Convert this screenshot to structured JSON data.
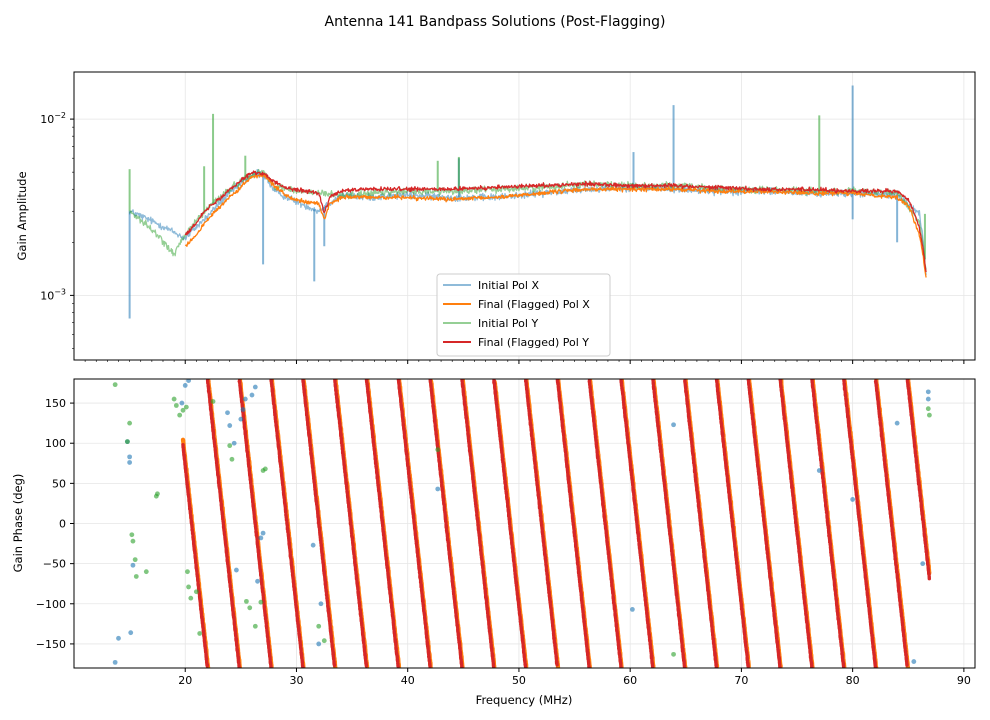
{
  "figure": {
    "title": "Antenna 141 Bandpass Solutions (Post-Flagging)"
  },
  "chart_data": [
    {
      "type": "line",
      "panel": "top",
      "title": "",
      "xlabel": "",
      "ylabel": "Gain Amplitude",
      "yscale": "log",
      "xlim": [
        10,
        91
      ],
      "ylim": [
        0.00043,
        0.0185
      ],
      "y_ticks": [
        {
          "value": 0.001,
          "base": "10",
          "exp": "−3"
        },
        {
          "value": 0.01,
          "base": "10",
          "exp": "−2"
        }
      ],
      "grid": true,
      "legend_position": "lower-center",
      "series": [
        {
          "name": "Initial Pol X",
          "color": "#1f77b4",
          "alpha": 0.5,
          "x": [
            15,
            20,
            22,
            24,
            26,
            27,
            28,
            30,
            32,
            34,
            36,
            40,
            44,
            48,
            52,
            56,
            60,
            64,
            68,
            72,
            76,
            80,
            84,
            86,
            86.6
          ],
          "y": [
            0.003,
            0.0021,
            0.0028,
            0.0038,
            0.0048,
            0.0049,
            0.0039,
            0.0034,
            0.003,
            0.0037,
            0.0036,
            0.0037,
            0.0036,
            0.0036,
            0.0038,
            0.004,
            0.0041,
            0.004,
            0.0039,
            0.0039,
            0.0038,
            0.0038,
            0.0037,
            0.0029,
            0.0013
          ],
          "spikes": [
            [
              15,
              0.00074
            ],
            [
              26.5,
              0.0052
            ],
            [
              27,
              0.0015
            ],
            [
              31.6,
              0.0012
            ],
            [
              32.5,
              0.0019
            ],
            [
              44.6,
              0.006
            ],
            [
              60.3,
              0.0065
            ],
            [
              63.9,
              0.012
            ],
            [
              80,
              0.0155
            ],
            [
              80,
              0.0027
            ],
            [
              84,
              0.002
            ]
          ]
        },
        {
          "name": "Final (Flagged) Pol X",
          "color": "#ff7f0e",
          "alpha": 1,
          "x": [
            20,
            21,
            22,
            23,
            24,
            25,
            26,
            27,
            28,
            29,
            30,
            31,
            32,
            32.5,
            33,
            34,
            36,
            40,
            44,
            48,
            52,
            56,
            60,
            64,
            68,
            72,
            76,
            80,
            84,
            85,
            86,
            86.6
          ],
          "y": [
            0.0019,
            0.0022,
            0.0027,
            0.0031,
            0.0036,
            0.0041,
            0.0047,
            0.0048,
            0.0042,
            0.0037,
            0.0035,
            0.0034,
            0.0033,
            0.0027,
            0.0033,
            0.0036,
            0.0036,
            0.0036,
            0.0035,
            0.0036,
            0.0038,
            0.004,
            0.004,
            0.004,
            0.0039,
            0.0039,
            0.0038,
            0.0038,
            0.0036,
            0.0032,
            0.0022,
            0.00125
          ]
        },
        {
          "name": "Initial Pol Y",
          "color": "#2ca02c",
          "alpha": 0.5,
          "x": [
            15,
            19,
            20,
            22,
            24,
            26,
            27,
            28,
            30,
            34,
            40,
            44,
            48,
            52,
            56,
            60,
            64,
            68,
            72,
            76,
            80,
            84,
            86,
            86.6
          ],
          "y": [
            0.003,
            0.0017,
            0.0022,
            0.0031,
            0.004,
            0.0049,
            0.005,
            0.0042,
            0.0039,
            0.0037,
            0.0039,
            0.0039,
            0.004,
            0.0041,
            0.0043,
            0.0042,
            0.0042,
            0.004,
            0.004,
            0.0039,
            0.0039,
            0.0038,
            0.0026,
            0.0014
          ],
          "spikes": [
            [
              15,
              0.0052
            ],
            [
              21.7,
              0.0054
            ],
            [
              22.5,
              0.0107
            ],
            [
              25.4,
              0.0062
            ],
            [
              42.7,
              0.0058
            ],
            [
              44.6,
              0.0061
            ],
            [
              77,
              0.0105
            ],
            [
              86.5,
              0.0029
            ]
          ]
        },
        {
          "name": "Final (Flagged) Pol Y",
          "color": "#d62728",
          "alpha": 1,
          "x": [
            20,
            21,
            22,
            23,
            24,
            25,
            26,
            27,
            28,
            29,
            30,
            31,
            32,
            32.5,
            33,
            34,
            36,
            40,
            44,
            48,
            52,
            56,
            60,
            64,
            68,
            72,
            76,
            80,
            84,
            85,
            86,
            86.6
          ],
          "y": [
            0.0022,
            0.0026,
            0.0031,
            0.0035,
            0.004,
            0.0045,
            0.005,
            0.0049,
            0.0044,
            0.0041,
            0.004,
            0.0039,
            0.0038,
            0.0029,
            0.0036,
            0.0039,
            0.004,
            0.004,
            0.004,
            0.0041,
            0.0042,
            0.0043,
            0.0042,
            0.0042,
            0.0041,
            0.004,
            0.004,
            0.0039,
            0.0039,
            0.0035,
            0.0024,
            0.00135
          ]
        }
      ]
    },
    {
      "type": "scatter",
      "panel": "bottom",
      "title": "",
      "xlabel": "Frequency (MHz)",
      "ylabel": "Gain Phase (deg)",
      "xlim": [
        10,
        91
      ],
      "ylim": [
        -180,
        180
      ],
      "x_ticks": [
        "20",
        "30",
        "40",
        "50",
        "60",
        "70",
        "80",
        "90"
      ],
      "y_ticks": [
        "−150",
        "−100",
        "−50",
        "0",
        "50",
        "100",
        "150"
      ],
      "grid": true,
      "phase_wrap": {
        "start_mhz": 19.8,
        "first_wrap_mhz": 22.0,
        "spacing_mhz": 2.86,
        "end_mhz": 86.9,
        "orange_offset_mhz": 0.06
      },
      "series": [
        {
          "name": "Initial Pol X",
          "color": "#1f77b4",
          "alpha": 0.6,
          "points": [
            [
              13.7,
              -173
            ],
            [
              14,
              -143
            ],
            [
              14.8,
              102
            ],
            [
              15,
              83
            ],
            [
              15,
              76
            ],
            [
              15.1,
              -136
            ],
            [
              15.3,
              -52
            ],
            [
              19.7,
              150
            ],
            [
              20,
              172
            ],
            [
              20.3,
              178
            ],
            [
              23.8,
              138
            ],
            [
              24,
              122
            ],
            [
              24.4,
              100
            ],
            [
              24.6,
              -58
            ],
            [
              25,
              130
            ],
            [
              25.2,
              142
            ],
            [
              25.4,
              155
            ],
            [
              26,
              160
            ],
            [
              26.3,
              170
            ],
            [
              26.5,
              -72
            ],
            [
              26.8,
              -18
            ],
            [
              27,
              -12
            ],
            [
              31.5,
              -27
            ],
            [
              32,
              -150
            ],
            [
              32.2,
              -100
            ],
            [
              42.7,
              43
            ],
            [
              63.9,
              123
            ],
            [
              60.2,
              -107
            ],
            [
              77,
              66
            ],
            [
              80,
              30
            ],
            [
              84,
              125
            ],
            [
              85.5,
              -172
            ],
            [
              86.3,
              -50
            ],
            [
              86.8,
              155
            ],
            [
              86.8,
              164
            ]
          ]
        },
        {
          "name": "Initial Pol Y",
          "color": "#2ca02c",
          "alpha": 0.6,
          "points": [
            [
              13.7,
              173
            ],
            [
              14.8,
              102
            ],
            [
              15,
              125
            ],
            [
              15.2,
              -14
            ],
            [
              15.3,
              -22
            ],
            [
              15.5,
              -45
            ],
            [
              15.6,
              -66
            ],
            [
              16.5,
              -60
            ],
            [
              17.5,
              37
            ],
            [
              17.4,
              34
            ],
            [
              19,
              155
            ],
            [
              19.2,
              147
            ],
            [
              19.5,
              135
            ],
            [
              19.8,
              141
            ],
            [
              20.1,
              145
            ],
            [
              20.2,
              -60
            ],
            [
              20.3,
              -79
            ],
            [
              20.5,
              -93
            ],
            [
              21,
              -85
            ],
            [
              21.3,
              -137
            ],
            [
              22.5,
              152
            ],
            [
              24,
              97
            ],
            [
              24.2,
              80
            ],
            [
              25.5,
              -97
            ],
            [
              25.8,
              -105
            ],
            [
              26.3,
              -128
            ],
            [
              26.8,
              -98
            ],
            [
              27,
              66
            ],
            [
              27.2,
              68
            ],
            [
              32,
              -128
            ],
            [
              32.5,
              -146
            ],
            [
              42.7,
              92
            ],
            [
              63.9,
              -163
            ],
            [
              86.8,
              143
            ],
            [
              86.9,
              135
            ]
          ]
        }
      ],
      "band_colors": {
        "final_pol_x": "#ff7f0e",
        "final_pol_y": "#d62728"
      }
    }
  ]
}
